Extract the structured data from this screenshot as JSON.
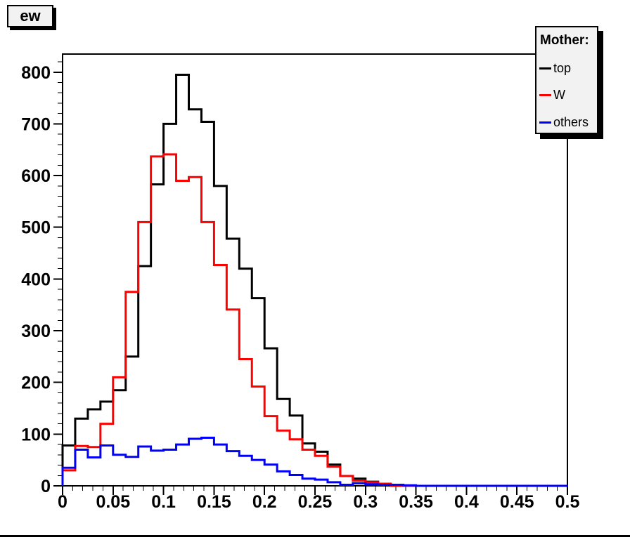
{
  "title_box": {
    "text": "ew"
  },
  "legend": {
    "title": "Mother:",
    "entries": [
      {
        "label": "top",
        "color": "#000000"
      },
      {
        "label": "W",
        "color": "#ff0000"
      },
      {
        "label": "others",
        "color": "#0000ff"
      }
    ]
  },
  "chart_data": {
    "type": "step-histogram",
    "title": "ew",
    "xlabel": "",
    "ylabel": "",
    "grid": false,
    "legend_position": "top-right",
    "xlim": [
      0,
      0.5
    ],
    "ylim": [
      0,
      835
    ],
    "x_start": 0,
    "bin_width": 0.0125,
    "n_bins": 40,
    "x_ticks": {
      "major": [
        0,
        0.05,
        0.1,
        0.15,
        0.2,
        0.25,
        0.3,
        0.35,
        0.4,
        0.45,
        0.5
      ],
      "labels": [
        "0",
        "0.05",
        "0.1",
        "0.15",
        "0.2",
        "0.25",
        "0.3",
        "0.35",
        "0.4",
        "0.45",
        "0.5"
      ],
      "minor_step": 0.01
    },
    "y_ticks": {
      "major": [
        0,
        100,
        200,
        300,
        400,
        500,
        600,
        700,
        800
      ],
      "labels": [
        "0",
        "100",
        "200",
        "300",
        "400",
        "500",
        "600",
        "700",
        "800"
      ],
      "minor_step": 20
    },
    "series": [
      {
        "name": "top",
        "color": "#000000",
        "values": [
          78,
          130,
          148,
          163,
          185,
          250,
          425,
          583,
          700,
          795,
          728,
          704,
          580,
          478,
          420,
          363,
          266,
          168,
          136,
          82,
          66,
          41,
          19,
          14,
          8,
          3,
          0,
          0,
          0,
          0,
          0,
          0,
          0,
          0,
          0,
          0,
          0,
          0,
          0,
          0
        ]
      },
      {
        "name": "W",
        "color": "#ff0000",
        "values": [
          30,
          77,
          75,
          120,
          210,
          375,
          510,
          637,
          641,
          590,
          597,
          510,
          427,
          341,
          245,
          192,
          135,
          107,
          90,
          70,
          58,
          37,
          19,
          10,
          7,
          4,
          0,
          0,
          0,
          0,
          0,
          0,
          0,
          0,
          0,
          0,
          0,
          0,
          0,
          0
        ]
      },
      {
        "name": "others",
        "color": "#0000ff",
        "values": [
          35,
          70,
          55,
          78,
          60,
          56,
          76,
          68,
          70,
          80,
          91,
          93,
          80,
          67,
          58,
          50,
          41,
          28,
          21,
          14,
          12,
          7,
          2,
          5,
          3,
          2,
          2,
          1,
          0,
          0,
          0,
          0,
          0,
          0,
          0,
          0,
          0,
          0,
          0,
          0
        ]
      }
    ]
  }
}
